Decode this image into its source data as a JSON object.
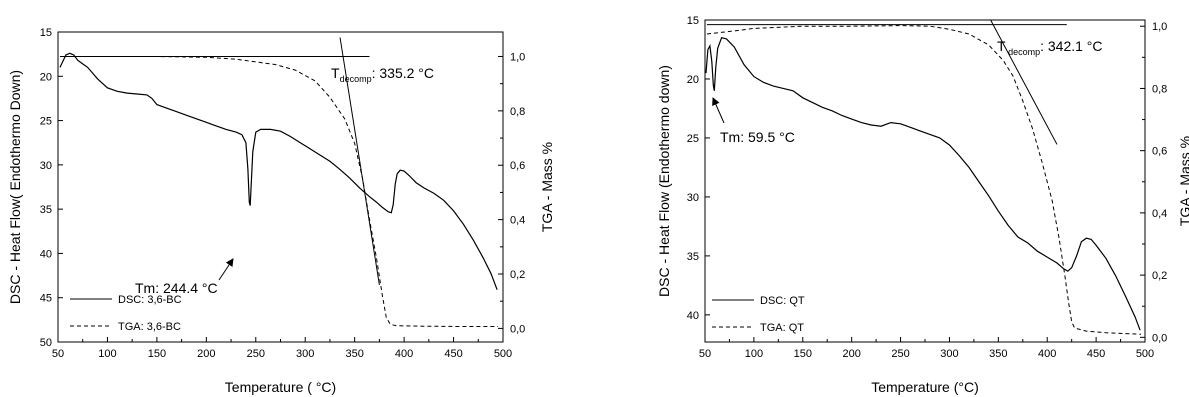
{
  "chart_data": [
    {
      "type": "line",
      "xlabel": "Temperature ( °C)",
      "ylabel_left": "DSC - Heat Flow( Endothermo Down)",
      "ylabel_right": "TGA - Mass %",
      "xlim": [
        50,
        500
      ],
      "xticks": [
        50,
        100,
        150,
        200,
        250,
        300,
        350,
        400,
        450,
        500
      ],
      "y_left_lim": [
        50,
        15
      ],
      "y_left_ticks": [
        15,
        20,
        25,
        30,
        35,
        40,
        45,
        50
      ],
      "y_right_lim": [
        -0.05,
        1.09
      ],
      "y_right_ticks": [
        "0,0",
        "0,2",
        "0,4",
        "0,6",
        "0,8",
        "1,0"
      ],
      "legend_position": "bottom-left",
      "series": [
        {
          "name": "DSC: 3,6-BC",
          "axis": "left",
          "style": "solid",
          "points": [
            [
              52,
              19
            ],
            [
              55,
              18.3
            ],
            [
              58,
              17.6
            ],
            [
              62,
              17.4
            ],
            [
              66,
              17.6
            ],
            [
              70,
              18.2
            ],
            [
              75,
              18.6
            ],
            [
              80,
              19.0
            ],
            [
              90,
              20.3
            ],
            [
              100,
              21.3
            ],
            [
              110,
              21.7
            ],
            [
              120,
              21.9
            ],
            [
              130,
              22.0
            ],
            [
              140,
              22.1
            ],
            [
              145,
              22.5
            ],
            [
              150,
              23.2
            ],
            [
              160,
              23.6
            ],
            [
              170,
              24.0
            ],
            [
              180,
              24.4
            ],
            [
              190,
              24.8
            ],
            [
              200,
              25.2
            ],
            [
              210,
              25.6
            ],
            [
              220,
              26.0
            ],
            [
              230,
              26.3
            ],
            [
              236,
              26.6
            ],
            [
              240,
              27.5
            ],
            [
              242,
              30.5
            ],
            [
              243.5,
              34.2
            ],
            [
              244.4,
              34.6
            ],
            [
              245.5,
              32
            ],
            [
              247,
              28.5
            ],
            [
              250,
              26.3
            ],
            [
              255,
              26.0
            ],
            [
              265,
              26.0
            ],
            [
              275,
              26.2
            ],
            [
              285,
              26.8
            ],
            [
              295,
              27.5
            ],
            [
              305,
              28.2
            ],
            [
              315,
              28.9
            ],
            [
              325,
              29.6
            ],
            [
              335,
              30.5
            ],
            [
              345,
              31.5
            ],
            [
              355,
              32.6
            ],
            [
              365,
              33.6
            ],
            [
              372,
              34.2
            ],
            [
              378,
              34.8
            ],
            [
              384,
              35.3
            ],
            [
              387,
              35.4
            ],
            [
              389,
              34.5
            ],
            [
              391,
              32.2
            ],
            [
              393,
              31.0
            ],
            [
              396,
              30.6
            ],
            [
              400,
              30.7
            ],
            [
              405,
              31.2
            ],
            [
              412,
              32.0
            ],
            [
              420,
              32.6
            ],
            [
              430,
              33.2
            ],
            [
              440,
              34.0
            ],
            [
              450,
              35.2
            ],
            [
              460,
              36.7
            ],
            [
              470,
              38.5
            ],
            [
              480,
              40.5
            ],
            [
              488,
              42.3
            ],
            [
              494,
              44.1
            ]
          ]
        },
        {
          "name": "TGA: 3,6-BC",
          "axis": "right",
          "style": "dashed",
          "points": [
            [
              55,
              1.0
            ],
            [
              100,
              1.0
            ],
            [
              150,
              1.0
            ],
            [
              200,
              0.997
            ],
            [
              230,
              0.99
            ],
            [
              250,
              0.98
            ],
            [
              270,
              0.97
            ],
            [
              290,
              0.95
            ],
            [
              310,
              0.91
            ],
            [
              325,
              0.85
            ],
            [
              340,
              0.77
            ],
            [
              350,
              0.68
            ],
            [
              358,
              0.55
            ],
            [
              365,
              0.4
            ],
            [
              372,
              0.26
            ],
            [
              378,
              0.12
            ],
            [
              382,
              0.04
            ],
            [
              386,
              0.015
            ],
            [
              392,
              0.01
            ],
            [
              420,
              0.008
            ],
            [
              460,
              0.007
            ],
            [
              495,
              0.007
            ]
          ]
        }
      ],
      "annotations": {
        "tm": {
          "prefix": "Tm: ",
          "value": "244.4 °C",
          "xy": [
            244.4,
            34.6
          ]
        },
        "tdecomp": {
          "T": "T",
          "sub": "decomp",
          "value": ": 335.2 °C"
        }
      },
      "onset_lines": [
        {
          "axis": "right",
          "from": [
            52,
            1.0
          ],
          "to": [
            365,
            1.0
          ]
        },
        {
          "axis": "right",
          "from": [
            335.2,
            1.07
          ],
          "to": [
            375,
            0.16
          ]
        }
      ]
    },
    {
      "type": "line",
      "xlabel": "Temperature (°C)",
      "ylabel_left": "DSC - Heat Flow (Endothermo down)",
      "ylabel_right": "TGA - Mass %",
      "xlim": [
        50,
        500
      ],
      "xticks": [
        50,
        100,
        150,
        200,
        250,
        300,
        350,
        400,
        450,
        500
      ],
      "y_left_lim": [
        42.3,
        15
      ],
      "y_left_ticks": [
        15,
        20,
        25,
        30,
        35,
        40
      ],
      "y_right_lim": [
        -0.015,
        1.02
      ],
      "y_right_ticks": [
        "0,0",
        "0,2",
        "0,4",
        "0,6",
        "0,8",
        "1,0"
      ],
      "legend_position": "bottom-left",
      "series": [
        {
          "name": "DSC: QT",
          "axis": "left",
          "style": "solid",
          "points": [
            [
              51,
              19.5
            ],
            [
              53,
              17.5
            ],
            [
              55,
              17.2
            ],
            [
              57,
              18.5
            ],
            [
              58.5,
              20.5
            ],
            [
              59.5,
              21.0
            ],
            [
              61,
              19
            ],
            [
              63,
              17.4
            ],
            [
              67,
              16.5
            ],
            [
              72,
              16.6
            ],
            [
              80,
              17.3
            ],
            [
              90,
              18.8
            ],
            [
              100,
              19.8
            ],
            [
              110,
              20.3
            ],
            [
              120,
              20.6
            ],
            [
              130,
              20.8
            ],
            [
              140,
              21.0
            ],
            [
              150,
              21.6
            ],
            [
              160,
              22.0
            ],
            [
              170,
              22.4
            ],
            [
              180,
              22.7
            ],
            [
              190,
              23.1
            ],
            [
              200,
              23.4
            ],
            [
              210,
              23.7
            ],
            [
              220,
              23.9
            ],
            [
              230,
              24.0
            ],
            [
              240,
              23.7
            ],
            [
              250,
              23.8
            ],
            [
              260,
              24.1
            ],
            [
              270,
              24.4
            ],
            [
              280,
              24.7
            ],
            [
              290,
              25.0
            ],
            [
              300,
              25.6
            ],
            [
              310,
              26.5
            ],
            [
              320,
              27.5
            ],
            [
              330,
              28.7
            ],
            [
              340,
              29.9
            ],
            [
              350,
              31.2
            ],
            [
              360,
              32.4
            ],
            [
              370,
              33.4
            ],
            [
              380,
              33.9
            ],
            [
              390,
              34.6
            ],
            [
              400,
              35.1
            ],
            [
              410,
              35.6
            ],
            [
              417,
              36.1
            ],
            [
              421,
              36.3
            ],
            [
              425,
              36.0
            ],
            [
              430,
              35.0
            ],
            [
              435,
              33.8
            ],
            [
              440,
              33.5
            ],
            [
              445,
              33.6
            ],
            [
              450,
              34.1
            ],
            [
              460,
              35.2
            ],
            [
              470,
              36.7
            ],
            [
              480,
              38.4
            ],
            [
              490,
              40.2
            ],
            [
              495,
              41.3
            ]
          ]
        },
        {
          "name": "TGA: QT",
          "axis": "right",
          "style": "dashed",
          "points": [
            [
              52,
              0.975
            ],
            [
              80,
              0.985
            ],
            [
              100,
              0.993
            ],
            [
              150,
              1.0
            ],
            [
              200,
              1.0
            ],
            [
              250,
              1.002
            ],
            [
              280,
              1.0
            ],
            [
              300,
              0.99
            ],
            [
              320,
              0.975
            ],
            [
              340,
              0.94
            ],
            [
              355,
              0.89
            ],
            [
              365,
              0.84
            ],
            [
              375,
              0.76
            ],
            [
              385,
              0.67
            ],
            [
              395,
              0.56
            ],
            [
              405,
              0.44
            ],
            [
              412,
              0.32
            ],
            [
              418,
              0.2
            ],
            [
              422,
              0.11
            ],
            [
              425,
              0.05
            ],
            [
              428,
              0.03
            ],
            [
              440,
              0.02
            ],
            [
              460,
              0.015
            ],
            [
              480,
              0.012
            ],
            [
              496,
              0.01
            ]
          ]
        }
      ],
      "annotations": {
        "tm": {
          "prefix": "Tm: ",
          "value": "59.5 °C",
          "xy": [
            59.5,
            21.0
          ]
        },
        "tdecomp": {
          "T": "T",
          "sub": " decomp",
          "value": ": 342.1 °C"
        }
      },
      "onset_lines": [
        {
          "axis": "right",
          "from": [
            52,
            1.005
          ],
          "to": [
            420,
            1.005
          ]
        },
        {
          "axis": "right",
          "from": [
            342.1,
            1.02
          ],
          "to": [
            410,
            0.62
          ]
        }
      ]
    }
  ]
}
